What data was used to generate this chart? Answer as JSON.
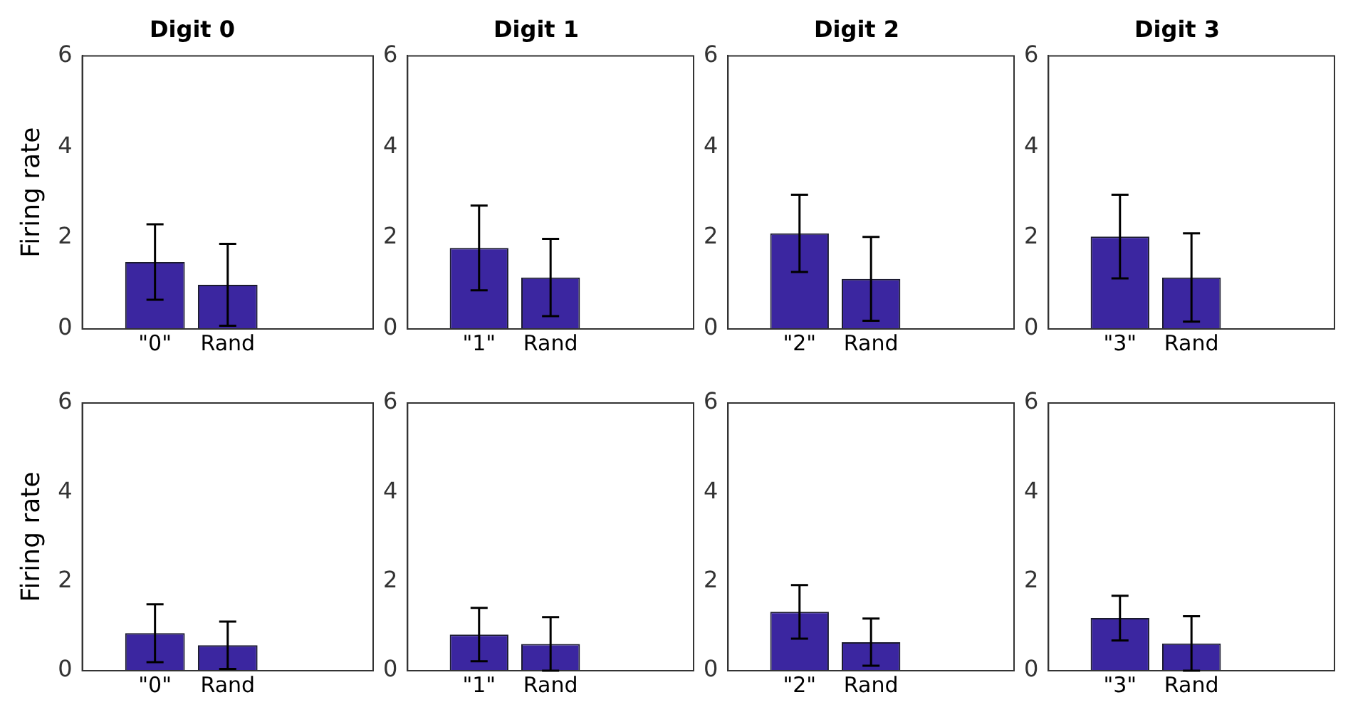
{
  "chart_data": [
    {
      "type": "bar",
      "title": "Digit 0",
      "ylabel": "Firing rate",
      "categories": [
        null,
        "\"0\"",
        "Rand",
        null,
        null
      ],
      "values": [
        null,
        1.47,
        0.97,
        null,
        null
      ],
      "errors": [
        null,
        0.83,
        0.9,
        null,
        null
      ],
      "color": "#3b26a0",
      "ylim": [
        0,
        6
      ],
      "yticks": [
        0,
        2,
        4,
        6
      ],
      "grid": false,
      "legend": false
    },
    {
      "type": "bar",
      "title": "Digit 1",
      "categories": [
        null,
        "\"1\"",
        "Rand",
        null,
        null
      ],
      "values": [
        null,
        1.78,
        1.13,
        null,
        null
      ],
      "errors": [
        null,
        0.93,
        0.85,
        null,
        null
      ],
      "color": "#3b26a0",
      "ylim": [
        0,
        6
      ],
      "yticks": [
        0,
        2,
        4,
        6
      ],
      "grid": false,
      "legend": false
    },
    {
      "type": "bar",
      "title": "Digit 2",
      "categories": [
        null,
        "\"2\"",
        "Rand",
        null,
        null
      ],
      "values": [
        null,
        2.1,
        1.1,
        null,
        null
      ],
      "errors": [
        null,
        0.85,
        0.92,
        null,
        null
      ],
      "color": "#3b26a0",
      "ylim": [
        0,
        6
      ],
      "yticks": [
        0,
        2,
        4,
        6
      ],
      "grid": false,
      "legend": false
    },
    {
      "type": "bar",
      "title": "Digit 3",
      "categories": [
        null,
        "\"3\"",
        "Rand",
        null,
        null
      ],
      "values": [
        null,
        2.03,
        1.13,
        null,
        null
      ],
      "errors": [
        null,
        0.92,
        0.97,
        null,
        null
      ],
      "color": "#3b26a0",
      "ylim": [
        0,
        6
      ],
      "yticks": [
        0,
        2,
        4,
        6
      ],
      "grid": false,
      "legend": false
    },
    {
      "type": "bar",
      "ylabel": "Firing rate",
      "categories": [
        null,
        "\"0\"",
        "Rand",
        null,
        null
      ],
      "values": [
        null,
        0.84,
        0.57,
        null,
        null
      ],
      "errors": [
        null,
        0.65,
        0.53,
        null,
        null
      ],
      "color": "#3b26a0",
      "ylim": [
        0,
        6
      ],
      "yticks": [
        0,
        2,
        4,
        6
      ],
      "grid": false,
      "legend": false
    },
    {
      "type": "bar",
      "categories": [
        null,
        "\"1\"",
        "Rand",
        null,
        null
      ],
      "values": [
        null,
        0.81,
        0.6,
        null,
        null
      ],
      "errors": [
        null,
        0.6,
        0.6,
        null,
        null
      ],
      "color": "#3b26a0",
      "ylim": [
        0,
        6
      ],
      "yticks": [
        0,
        2,
        4,
        6
      ],
      "grid": false,
      "legend": false
    },
    {
      "type": "bar",
      "categories": [
        null,
        "\"2\"",
        "Rand",
        null,
        null
      ],
      "values": [
        null,
        1.32,
        0.64,
        null,
        null
      ],
      "errors": [
        null,
        0.6,
        0.53,
        null,
        null
      ],
      "color": "#3b26a0",
      "ylim": [
        0,
        6
      ],
      "yticks": [
        0,
        2,
        4,
        6
      ],
      "grid": false,
      "legend": false
    },
    {
      "type": "bar",
      "categories": [
        null,
        "\"3\"",
        "Rand",
        null,
        null
      ],
      "values": [
        null,
        1.18,
        0.61,
        null,
        null
      ],
      "errors": [
        null,
        0.5,
        0.61,
        null,
        null
      ],
      "color": "#3b26a0",
      "ylim": [
        0,
        6
      ],
      "yticks": [
        0,
        2,
        4,
        6
      ],
      "grid": false,
      "legend": false
    }
  ]
}
